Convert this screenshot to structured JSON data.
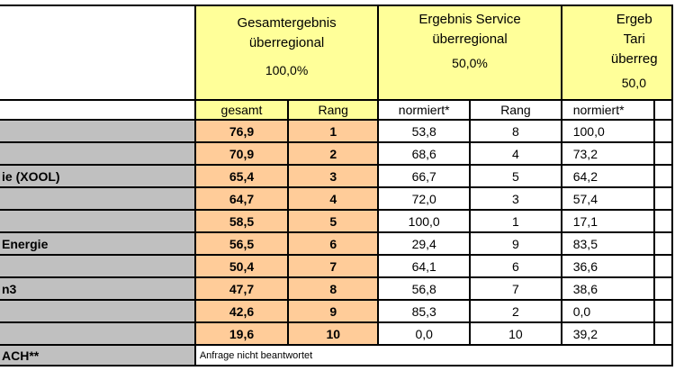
{
  "headers": {
    "total": {
      "title": "Gesamtergebnis überregional",
      "weight": "100,0%"
    },
    "service": {
      "title": "Ergebnis Service überregional",
      "weight": "50,0%"
    },
    "tariff": {
      "title": "Ergeb Tari überreg",
      "weight": "50,0"
    }
  },
  "subheaders": [
    "gesamt",
    "Rang",
    "normiert*",
    "Rang",
    "normiert*"
  ],
  "rows": [
    {
      "name": "",
      "gesamt": "76,9",
      "rang": "1",
      "s_norm": "53,8",
      "s_rang": "8",
      "t_norm": "100,0"
    },
    {
      "name": "",
      "gesamt": "70,9",
      "rang": "2",
      "s_norm": "68,6",
      "s_rang": "4",
      "t_norm": "73,2"
    },
    {
      "name": "ie (XOOL)",
      "gesamt": "65,4",
      "rang": "3",
      "s_norm": "66,7",
      "s_rang": "5",
      "t_norm": "64,2"
    },
    {
      "name": "",
      "gesamt": "64,7",
      "rang": "4",
      "s_norm": "72,0",
      "s_rang": "3",
      "t_norm": "57,4"
    },
    {
      "name": "",
      "gesamt": "58,5",
      "rang": "5",
      "s_norm": "100,0",
      "s_rang": "1",
      "t_norm": "17,1"
    },
    {
      "name": "Energie",
      "gesamt": "56,5",
      "rang": "6",
      "s_norm": "29,4",
      "s_rang": "9",
      "t_norm": "83,5"
    },
    {
      "name": "",
      "gesamt": "50,4",
      "rang": "7",
      "s_norm": "64,1",
      "s_rang": "6",
      "t_norm": "36,6"
    },
    {
      "name": "n3",
      "gesamt": "47,7",
      "rang": "8",
      "s_norm": "56,8",
      "s_rang": "7",
      "t_norm": "38,6"
    },
    {
      "name": "",
      "gesamt": "42,6",
      "rang": "9",
      "s_norm": "85,3",
      "s_rang": "2",
      "t_norm": "0,0"
    },
    {
      "name": "",
      "gesamt": "19,6",
      "rang": "10",
      "s_norm": "0,0",
      "s_rang": "10",
      "t_norm": "39,2"
    }
  ],
  "last_row": {
    "name": "ACH**",
    "note": "Anfrage nicht beantwortet"
  },
  "colors": {
    "header": "#ffff99",
    "score": "#ffcc99",
    "name": "#c0c0c0"
  }
}
